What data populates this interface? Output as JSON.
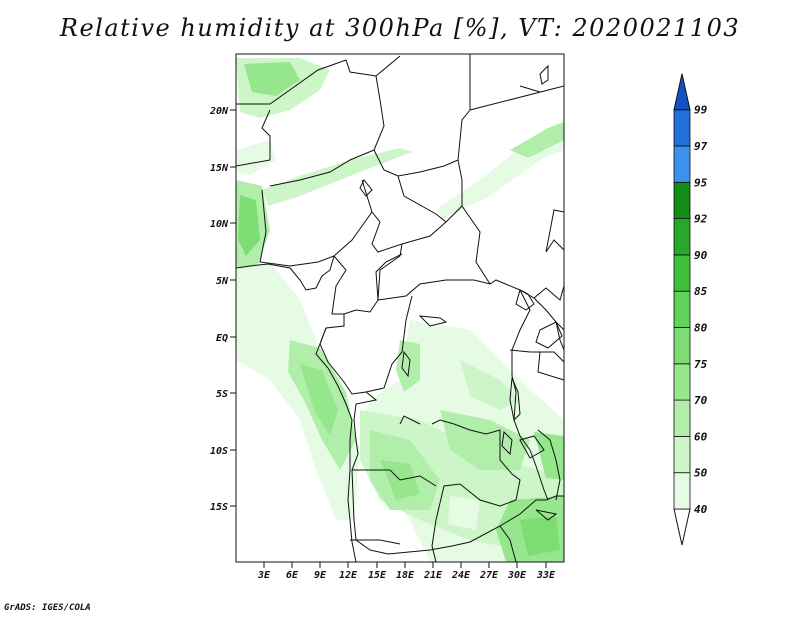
{
  "title": "Relative humidity at 300hPa [%], VT: 2020021103",
  "credit": "GrADS: IGES/COLA",
  "map": {
    "variable": "Relative humidity",
    "level": "300hPa",
    "units": "%",
    "valid_time": "2020021103",
    "region": "Central and West Africa",
    "lat_labels": [
      "20N",
      "15N",
      "10N",
      "5N",
      "EQ",
      "5S",
      "10S",
      "15S"
    ],
    "lon_labels": [
      "3E",
      "6E",
      "9E",
      "12E",
      "15E",
      "18E",
      "21E",
      "24E",
      "27E",
      "30E",
      "33E"
    ]
  },
  "colorbar": {
    "levels": [
      "40",
      "50",
      "60",
      "70",
      "75",
      "80",
      "85",
      "90",
      "92",
      "95",
      "97",
      "99"
    ],
    "colors": [
      "#ffffff",
      "#e6fbe4",
      "#ccf5c8",
      "#b0eeaa",
      "#96e68e",
      "#7ddd74",
      "#62d35a",
      "#3fc03d",
      "#27a829",
      "#128e17",
      "#3a92ea",
      "#1f6fdd",
      "#1452c4"
    ]
  }
}
